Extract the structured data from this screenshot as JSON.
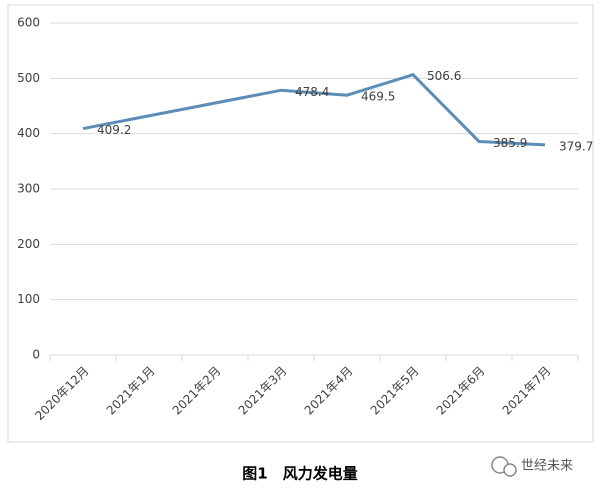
{
  "chart_data": {
    "type": "line",
    "categories": [
      "2020年12月",
      "2021年1月",
      "2021年2月",
      "2021年3月",
      "2021年4月",
      "2021年5月",
      "2021年6月",
      "2021年7月"
    ],
    "series": [
      {
        "name": "风力发电量",
        "color": "#5b8db8",
        "values": [
          409.2,
          null,
          null,
          478.4,
          469.5,
          506.6,
          385.9,
          379.7
        ]
      }
    ],
    "span_gaps": true,
    "ylim": [
      0,
      600
    ],
    "yticks": [
      0,
      100,
      200,
      300,
      400,
      500,
      600
    ],
    "grid": true,
    "caption": "图1　风力发电量"
  },
  "watermark": "世经未来"
}
